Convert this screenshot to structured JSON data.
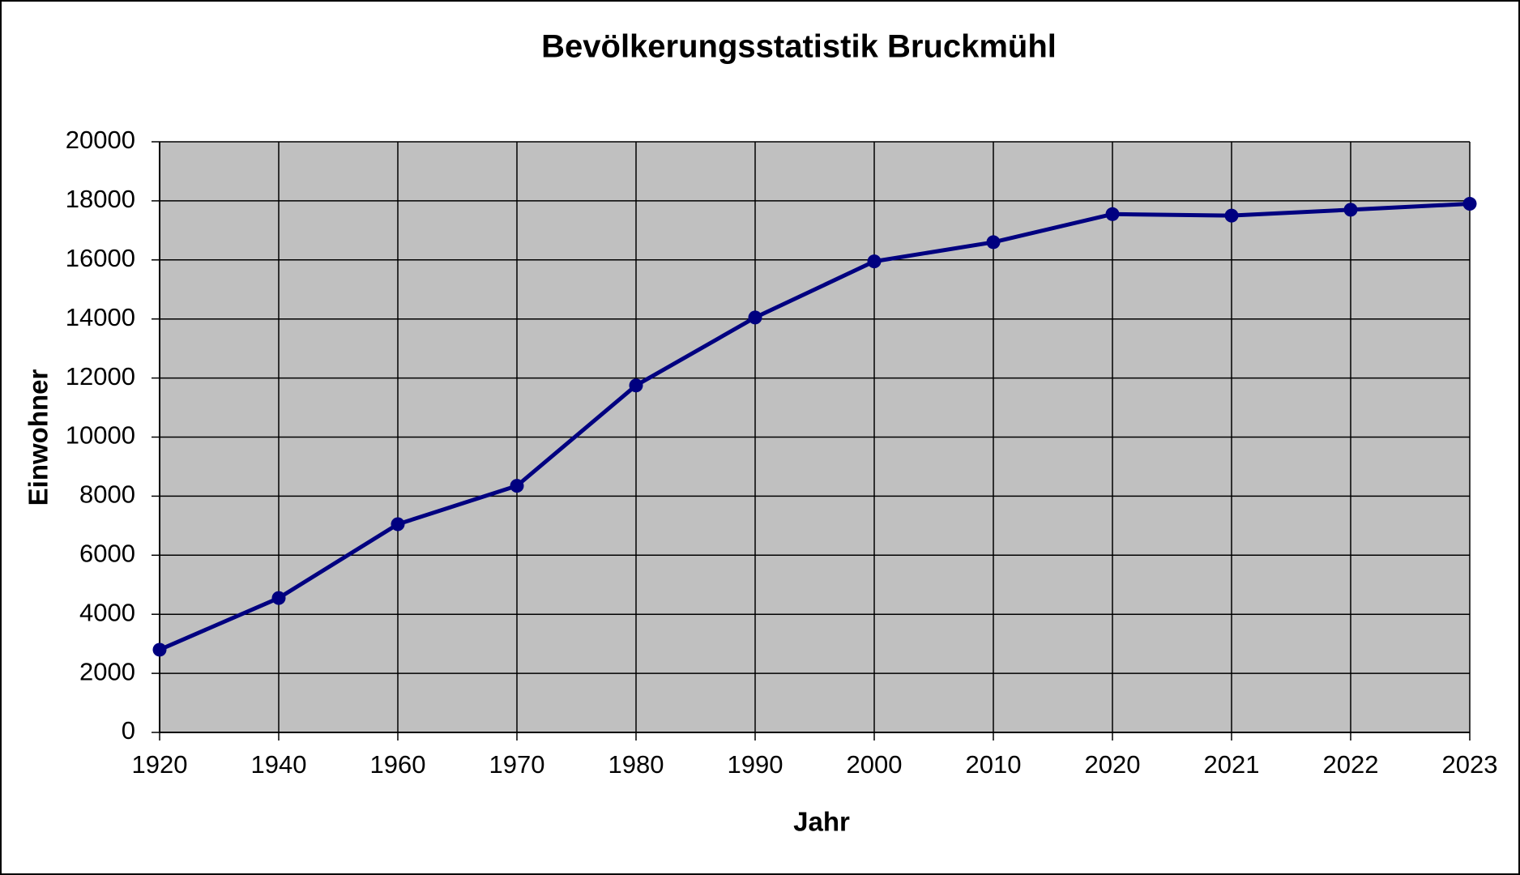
{
  "chart_data": {
    "type": "line",
    "title": "Bevölkerungsstatistik Bruckmühl",
    "x_label": "Jahr",
    "y_label": "Einwohner",
    "categories": [
      "1920",
      "1940",
      "1960",
      "1970",
      "1980",
      "1990",
      "2000",
      "2010",
      "2020",
      "2021",
      "2022",
      "2023"
    ],
    "series": [
      {
        "name": "Einwohner",
        "color": "#000080",
        "values": [
          2800,
          4550,
          7050,
          8350,
          11750,
          14050,
          15950,
          16600,
          17550,
          17500,
          17700,
          17900
        ]
      }
    ],
    "ylim": [
      0,
      20000
    ],
    "yticks": [
      0,
      2000,
      4000,
      6000,
      8000,
      10000,
      12000,
      14000,
      16000,
      18000,
      20000
    ],
    "grid": true,
    "plot_background": "#c0c0c0"
  }
}
